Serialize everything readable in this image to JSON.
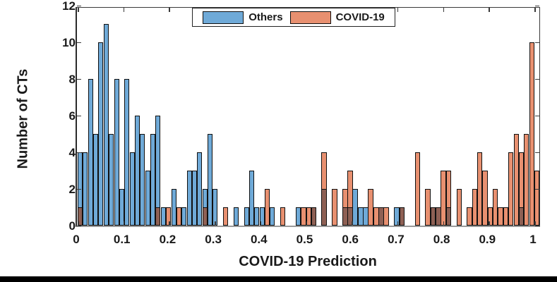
{
  "legend": {
    "items": [
      {
        "label": "Others",
        "color": "#6FAAD8"
      },
      {
        "label": "COVID-19",
        "color": "#E89070"
      }
    ]
  },
  "colors": {
    "others_bar": "#6FAAD8",
    "covid_bar": "#E89070",
    "overlap_bar": "#8E6054",
    "bar_edge": "#101010",
    "text": "#1a1a1a",
    "baseline_gray": "#9a9a9a",
    "bottom_strip": "#000000"
  },
  "y_axis": {
    "label": "Number of CTs",
    "ticks": [
      "0",
      "2",
      "4",
      "6",
      "8",
      "10",
      "12"
    ],
    "min": 0,
    "max": 12
  },
  "x_axis": {
    "label": "COVID-19 Prediction",
    "ticks": [
      "0",
      "0.1",
      "0.2",
      "0.3",
      "0.4",
      "0.5",
      "0.6",
      "0.7",
      "0.8",
      "0.9",
      "1"
    ],
    "min": 0,
    "max": 1.016
  },
  "chart_data": {
    "type": "bar",
    "subtype": "overlaid-histogram",
    "title": "",
    "xlabel": "COVID-19 Prediction",
    "ylabel": "Number of CTs",
    "ylim": [
      0,
      12
    ],
    "xlim": [
      0,
      1.016
    ],
    "grid": false,
    "legend_position": "top-center",
    "bin_width": 0.01136,
    "series_names": [
      "Others",
      "COVID-19"
    ],
    "bars": [
      {
        "x": 0.0,
        "others": 4,
        "covid": 1
      },
      {
        "x": 0.011,
        "others": 4,
        "covid": 0
      },
      {
        "x": 0.023,
        "others": 8,
        "covid": 0
      },
      {
        "x": 0.034,
        "others": 5,
        "covid": 0
      },
      {
        "x": 0.045,
        "others": 10,
        "covid": 0
      },
      {
        "x": 0.057,
        "others": 11,
        "covid": 0
      },
      {
        "x": 0.068,
        "others": 5,
        "covid": 0
      },
      {
        "x": 0.08,
        "others": 8,
        "covid": 0
      },
      {
        "x": 0.091,
        "others": 2,
        "covid": 0
      },
      {
        "x": 0.102,
        "others": 8,
        "covid": 0
      },
      {
        "x": 0.114,
        "others": 4,
        "covid": 0
      },
      {
        "x": 0.125,
        "others": 6,
        "covid": 0
      },
      {
        "x": 0.136,
        "others": 5,
        "covid": 0
      },
      {
        "x": 0.148,
        "others": 3,
        "covid": 0
      },
      {
        "x": 0.159,
        "others": 5,
        "covid": 0
      },
      {
        "x": 0.17,
        "others": 6,
        "covid": 1
      },
      {
        "x": 0.182,
        "others": 1,
        "covid": 0
      },
      {
        "x": 0.193,
        "others": 0,
        "covid": 1
      },
      {
        "x": 0.205,
        "others": 2,
        "covid": 0
      },
      {
        "x": 0.216,
        "others": 0,
        "covid": 1
      },
      {
        "x": 0.227,
        "others": 1,
        "covid": 0
      },
      {
        "x": 0.239,
        "others": 3,
        "covid": 0
      },
      {
        "x": 0.25,
        "others": 3,
        "covid": 0
      },
      {
        "x": 0.261,
        "others": 4,
        "covid": 0
      },
      {
        "x": 0.273,
        "others": 2,
        "covid": 1
      },
      {
        "x": 0.284,
        "others": 5,
        "covid": 0
      },
      {
        "x": 0.295,
        "others": 2,
        "covid": 0
      },
      {
        "x": 0.318,
        "others": 0,
        "covid": 1
      },
      {
        "x": 0.341,
        "others": 1,
        "covid": 0
      },
      {
        "x": 0.364,
        "others": 1,
        "covid": 0
      },
      {
        "x": 0.375,
        "others": 3,
        "covid": 0
      },
      {
        "x": 0.386,
        "others": 1,
        "covid": 0
      },
      {
        "x": 0.398,
        "others": 1,
        "covid": 0
      },
      {
        "x": 0.409,
        "others": 0,
        "covid": 2
      },
      {
        "x": 0.42,
        "others": 1,
        "covid": 0
      },
      {
        "x": 0.443,
        "others": 0,
        "covid": 1
      },
      {
        "x": 0.477,
        "others": 1,
        "covid": 0
      },
      {
        "x": 0.489,
        "others": 0,
        "covid": 1
      },
      {
        "x": 0.5,
        "others": 0,
        "covid": 1
      },
      {
        "x": 0.511,
        "others": 1,
        "covid": 1
      },
      {
        "x": 0.534,
        "others": 2,
        "covid": 4
      },
      {
        "x": 0.557,
        "others": 0,
        "covid": 2
      },
      {
        "x": 0.58,
        "others": 1,
        "covid": 2
      },
      {
        "x": 0.591,
        "others": 1,
        "covid": 3
      },
      {
        "x": 0.602,
        "others": 2,
        "covid": 0
      },
      {
        "x": 0.614,
        "others": 1,
        "covid": 0
      },
      {
        "x": 0.625,
        "others": 1,
        "covid": 0
      },
      {
        "x": 0.636,
        "others": 0,
        "covid": 2
      },
      {
        "x": 0.648,
        "others": 0,
        "covid": 1
      },
      {
        "x": 0.659,
        "others": 1,
        "covid": 1
      },
      {
        "x": 0.67,
        "others": 0,
        "covid": 1
      },
      {
        "x": 0.693,
        "others": 1,
        "covid": 0
      },
      {
        "x": 0.705,
        "others": 1,
        "covid": 1
      },
      {
        "x": 0.739,
        "others": 0,
        "covid": 4
      },
      {
        "x": 0.761,
        "others": 0,
        "covid": 2
      },
      {
        "x": 0.773,
        "others": 1,
        "covid": 1
      },
      {
        "x": 0.784,
        "others": 1,
        "covid": 1
      },
      {
        "x": 0.795,
        "others": 0,
        "covid": 3
      },
      {
        "x": 0.807,
        "others": 1,
        "covid": 3
      },
      {
        "x": 0.83,
        "others": 0,
        "covid": 2
      },
      {
        "x": 0.852,
        "others": 0,
        "covid": 1
      },
      {
        "x": 0.864,
        "others": 0,
        "covid": 2
      },
      {
        "x": 0.875,
        "others": 0,
        "covid": 4
      },
      {
        "x": 0.886,
        "others": 0,
        "covid": 3
      },
      {
        "x": 0.898,
        "others": 0,
        "covid": 1
      },
      {
        "x": 0.909,
        "others": 0,
        "covid": 2
      },
      {
        "x": 0.92,
        "others": 0,
        "covid": 1
      },
      {
        "x": 0.932,
        "others": 0,
        "covid": 1
      },
      {
        "x": 0.943,
        "others": 0,
        "covid": 4
      },
      {
        "x": 0.955,
        "others": 0,
        "covid": 5
      },
      {
        "x": 0.966,
        "others": 1,
        "covid": 4
      },
      {
        "x": 0.977,
        "others": 0,
        "covid": 5
      },
      {
        "x": 0.989,
        "others": 0,
        "covid": 10
      },
      {
        "x": 1.0,
        "others": 0,
        "covid": 3
      }
    ]
  }
}
